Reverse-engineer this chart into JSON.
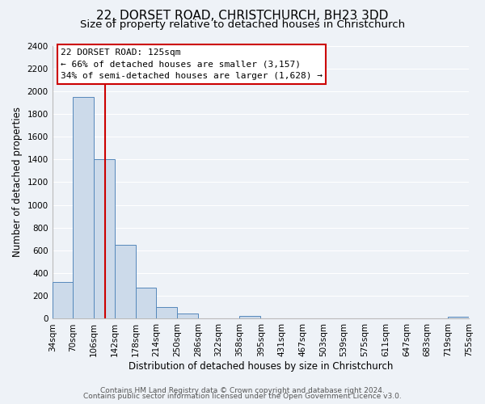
{
  "title_line1": "22, DORSET ROAD, CHRISTCHURCH, BH23 3DD",
  "title_line2": "Size of property relative to detached houses in Christchurch",
  "xlabel": "Distribution of detached houses by size in Christchurch",
  "ylabel": "Number of detached properties",
  "bin_edges": [
    34,
    70,
    106,
    142,
    178,
    214,
    250,
    286,
    322,
    358,
    395,
    431,
    467,
    503,
    539,
    575,
    611,
    647,
    683,
    719,
    755
  ],
  "bin_labels": [
    "34sqm",
    "70sqm",
    "106sqm",
    "142sqm",
    "178sqm",
    "214sqm",
    "250sqm",
    "286sqm",
    "322sqm",
    "358sqm",
    "395sqm",
    "431sqm",
    "467sqm",
    "503sqm",
    "539sqm",
    "575sqm",
    "611sqm",
    "647sqm",
    "683sqm",
    "719sqm",
    "755sqm"
  ],
  "bar_heights": [
    325,
    1950,
    1400,
    650,
    270,
    105,
    45,
    0,
    0,
    28,
    0,
    0,
    0,
    0,
    0,
    0,
    0,
    0,
    0,
    20
  ],
  "bar_color": "#ccdaea",
  "bar_edge_color": "#5588bb",
  "vline_x": 125,
  "vline_color": "#cc0000",
  "ylim": [
    0,
    2400
  ],
  "yticks": [
    0,
    200,
    400,
    600,
    800,
    1000,
    1200,
    1400,
    1600,
    1800,
    2000,
    2200,
    2400
  ],
  "annotation_title": "22 DORSET ROAD: 125sqm",
  "annotation_line1": "← 66% of detached houses are smaller (3,157)",
  "annotation_line2": "34% of semi-detached houses are larger (1,628) →",
  "annotation_box_facecolor": "#ffffff",
  "annotation_box_edgecolor": "#cc0000",
  "footer_line1": "Contains HM Land Registry data © Crown copyright and database right 2024.",
  "footer_line2": "Contains public sector information licensed under the Open Government Licence v3.0.",
  "bg_color": "#eef2f7",
  "grid_color": "#ffffff",
  "title_fontsize": 11,
  "subtitle_fontsize": 9.5,
  "axis_label_fontsize": 8.5,
  "tick_fontsize": 7.5,
  "annotation_fontsize": 8,
  "footer_fontsize": 6.5
}
